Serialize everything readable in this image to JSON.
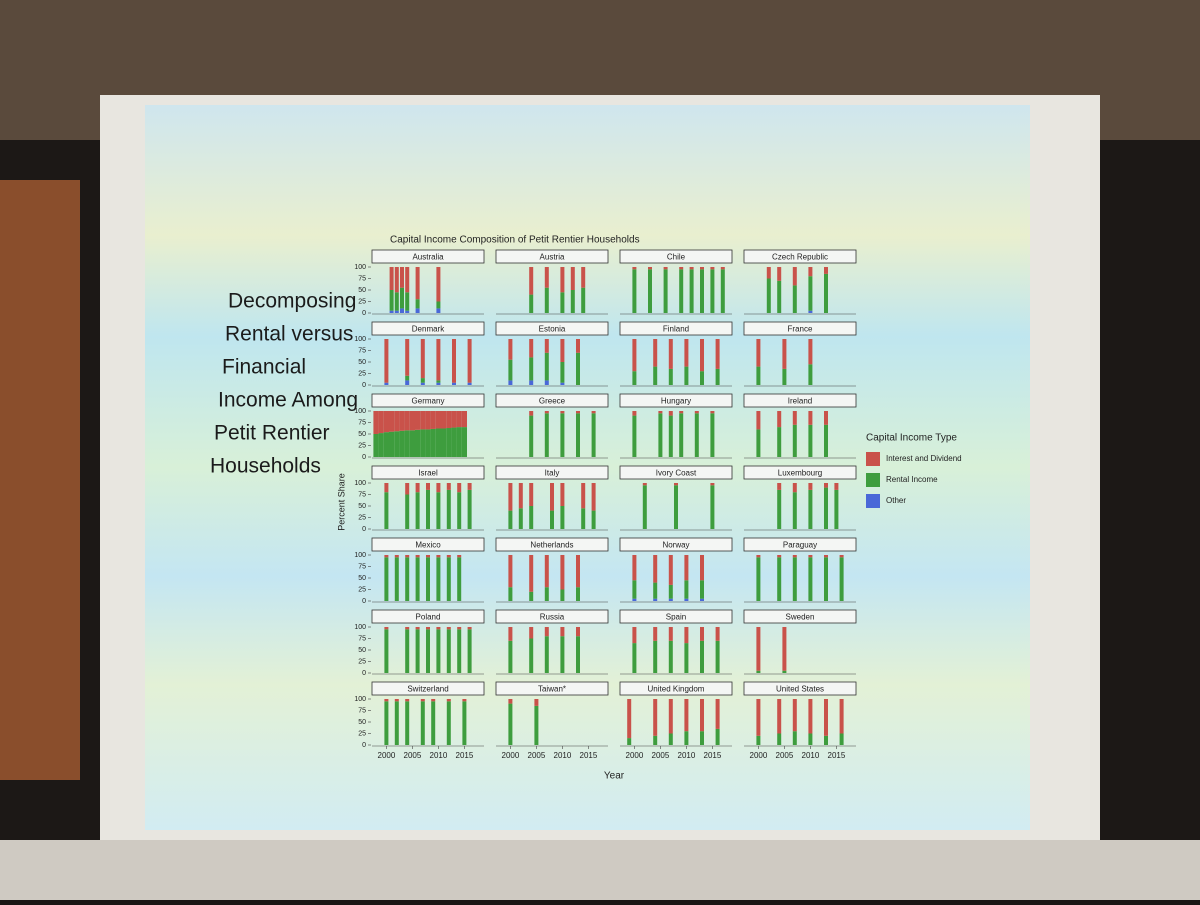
{
  "slide": {
    "heading_lines": [
      "Decomposing",
      "Rental versus",
      "Financial",
      "Income Among",
      "Petit Rentier",
      "Households"
    ]
  },
  "chart_data": {
    "type": "bar",
    "stacked": true,
    "title": "Capital Income Composition of Petit Rentier Households",
    "x_label": "Year",
    "y_label": "Percent Share",
    "legend_title": "Capital Income Type",
    "series": [
      {
        "name": "Interest and Dividend",
        "color": "#c9524a"
      },
      {
        "name": "Rental Income",
        "color": "#3e9d3e"
      },
      {
        "name": "Other",
        "color": "#4a68d8"
      }
    ],
    "ylim": [
      0,
      100
    ],
    "yticks": [
      0,
      25,
      50,
      75,
      100
    ],
    "xlim": [
      1998,
      2018
    ],
    "xticks": [
      2000,
      2005,
      2010,
      2015
    ],
    "panels": [
      {
        "title": "Australia",
        "x": [
          2001,
          2002,
          2003,
          2004,
          2006,
          2010
        ],
        "series": [
          [
            50,
            55,
            45,
            55,
            70,
            75
          ],
          [
            45,
            40,
            45,
            40,
            20,
            15
          ],
          [
            5,
            5,
            10,
            5,
            10,
            10
          ]
        ]
      },
      {
        "title": "Austria",
        "x": [
          2004,
          2007,
          2010,
          2012,
          2014
        ],
        "series": [
          [
            60,
            45,
            55,
            50,
            45
          ],
          [
            40,
            55,
            45,
            50,
            55
          ],
          [
            0,
            0,
            0,
            0,
            0
          ]
        ]
      },
      {
        "title": "Chile",
        "x": [
          2000,
          2003,
          2006,
          2009,
          2011,
          2013,
          2015,
          2017
        ],
        "series": [
          [
            5,
            5,
            5,
            5,
            5,
            5,
            5,
            5
          ],
          [
            95,
            95,
            95,
            95,
            95,
            95,
            95,
            95
          ],
          [
            0,
            0,
            0,
            0,
            0,
            0,
            0,
            0
          ]
        ]
      },
      {
        "title": "Czech Republic",
        "x": [
          2002,
          2004,
          2007,
          2010,
          2013
        ],
        "series": [
          [
            25,
            30,
            40,
            20,
            15
          ],
          [
            75,
            70,
            60,
            75,
            85
          ],
          [
            0,
            0,
            0,
            5,
            0
          ]
        ]
      },
      {
        "title": "Denmark",
        "x": [
          2000,
          2004,
          2007,
          2010,
          2013,
          2016
        ],
        "series": [
          [
            95,
            80,
            85,
            90,
            95,
            95
          ],
          [
            0,
            10,
            10,
            5,
            0,
            0
          ],
          [
            5,
            10,
            5,
            5,
            5,
            5
          ]
        ]
      },
      {
        "title": "Estonia",
        "x": [
          2000,
          2004,
          2007,
          2010,
          2013
        ],
        "series": [
          [
            45,
            40,
            30,
            50,
            30
          ],
          [
            45,
            50,
            60,
            45,
            70
          ],
          [
            10,
            10,
            10,
            5,
            0
          ]
        ]
      },
      {
        "title": "Finland",
        "x": [
          2000,
          2004,
          2007,
          2010,
          2013,
          2016
        ],
        "series": [
          [
            70,
            60,
            65,
            60,
            70,
            65
          ],
          [
            30,
            40,
            35,
            40,
            30,
            35
          ],
          [
            0,
            0,
            0,
            0,
            0,
            0
          ]
        ]
      },
      {
        "title": "France",
        "x": [
          2000,
          2005,
          2010
        ],
        "series": [
          [
            60,
            65,
            55
          ],
          [
            40,
            35,
            45
          ],
          [
            0,
            0,
            0
          ]
        ]
      },
      {
        "title": "Germany",
        "x": [
          1998,
          1999,
          2000,
          2001,
          2002,
          2003,
          2004,
          2005,
          2006,
          2007,
          2008,
          2009,
          2010,
          2011,
          2012,
          2013,
          2014,
          2015
        ],
        "series": [
          [
            50,
            48,
            46,
            45,
            44,
            43,
            42,
            42,
            41,
            40,
            40,
            39,
            38,
            38,
            37,
            36,
            35,
            35
          ],
          [
            50,
            52,
            54,
            55,
            56,
            57,
            58,
            58,
            59,
            60,
            60,
            61,
            62,
            62,
            63,
            64,
            65,
            65
          ],
          [
            0,
            0,
            0,
            0,
            0,
            0,
            0,
            0,
            0,
            0,
            0,
            0,
            0,
            0,
            0,
            0,
            0,
            0
          ]
        ]
      },
      {
        "title": "Greece",
        "x": [
          2004,
          2007,
          2010,
          2013,
          2016
        ],
        "series": [
          [
            10,
            5,
            5,
            5,
            5
          ],
          [
            90,
            95,
            95,
            95,
            95
          ],
          [
            0,
            0,
            0,
            0,
            0
          ]
        ]
      },
      {
        "title": "Hungary",
        "x": [
          2000,
          2005,
          2007,
          2009,
          2012,
          2015
        ],
        "series": [
          [
            10,
            5,
            10,
            5,
            5,
            5
          ],
          [
            90,
            95,
            90,
            95,
            95,
            95
          ],
          [
            0,
            0,
            0,
            0,
            0,
            0
          ]
        ]
      },
      {
        "title": "Ireland",
        "x": [
          2000,
          2004,
          2007,
          2010,
          2013
        ],
        "series": [
          [
            40,
            35,
            30,
            30,
            30
          ],
          [
            60,
            65,
            70,
            70,
            70
          ],
          [
            0,
            0,
            0,
            0,
            0
          ]
        ]
      },
      {
        "title": "Israel",
        "x": [
          2000,
          2004,
          2006,
          2008,
          2010,
          2012,
          2014,
          2016
        ],
        "series": [
          [
            20,
            25,
            20,
            15,
            20,
            15,
            20,
            15
          ],
          [
            80,
            75,
            80,
            85,
            80,
            85,
            80,
            85
          ],
          [
            0,
            0,
            0,
            0,
            0,
            0,
            0,
            0
          ]
        ]
      },
      {
        "title": "Italy",
        "x": [
          2000,
          2002,
          2004,
          2008,
          2010,
          2014,
          2016
        ],
        "series": [
          [
            60,
            55,
            50,
            60,
            50,
            55,
            60
          ],
          [
            40,
            45,
            50,
            40,
            50,
            45,
            40
          ],
          [
            0,
            0,
            0,
            0,
            0,
            0,
            0
          ]
        ]
      },
      {
        "title": "Ivory Coast",
        "x": [
          2002,
          2008,
          2015
        ],
        "series": [
          [
            5,
            5,
            5
          ],
          [
            95,
            95,
            95
          ],
          [
            0,
            0,
            0
          ]
        ]
      },
      {
        "title": "Luxembourg",
        "x": [
          2004,
          2007,
          2010,
          2013,
          2015
        ],
        "series": [
          [
            15,
            20,
            15,
            10,
            15
          ],
          [
            85,
            80,
            85,
            90,
            85
          ],
          [
            0,
            0,
            0,
            0,
            0
          ]
        ]
      },
      {
        "title": "Mexico",
        "x": [
          2000,
          2002,
          2004,
          2006,
          2008,
          2010,
          2012,
          2014
        ],
        "series": [
          [
            5,
            5,
            5,
            5,
            5,
            5,
            5,
            5
          ],
          [
            95,
            95,
            95,
            95,
            95,
            95,
            95,
            95
          ],
          [
            0,
            0,
            0,
            0,
            0,
            0,
            0,
            0
          ]
        ]
      },
      {
        "title": "Netherlands",
        "x": [
          2000,
          2004,
          2007,
          2010,
          2013
        ],
        "series": [
          [
            70,
            80,
            70,
            75,
            70
          ],
          [
            30,
            20,
            30,
            25,
            30
          ],
          [
            0,
            0,
            0,
            0,
            0
          ]
        ]
      },
      {
        "title": "Norway",
        "x": [
          2000,
          2004,
          2007,
          2010,
          2013
        ],
        "series": [
          [
            55,
            60,
            65,
            55,
            55
          ],
          [
            40,
            35,
            30,
            40,
            40
          ],
          [
            5,
            5,
            5,
            5,
            5
          ]
        ]
      },
      {
        "title": "Paraguay",
        "x": [
          2000,
          2004,
          2007,
          2010,
          2013,
          2016
        ],
        "series": [
          [
            5,
            5,
            5,
            5,
            5,
            5
          ],
          [
            95,
            95,
            95,
            95,
            95,
            95
          ],
          [
            0,
            0,
            0,
            0,
            0,
            0
          ]
        ]
      },
      {
        "title": "Poland",
        "x": [
          2000,
          2004,
          2006,
          2008,
          2010,
          2012,
          2014,
          2016
        ],
        "series": [
          [
            5,
            5,
            5,
            5,
            5,
            5,
            5,
            5
          ],
          [
            95,
            95,
            95,
            95,
            95,
            95,
            95,
            95
          ],
          [
            0,
            0,
            0,
            0,
            0,
            0,
            0,
            0
          ]
        ]
      },
      {
        "title": "Russia",
        "x": [
          2000,
          2004,
          2007,
          2010,
          2013
        ],
        "series": [
          [
            30,
            25,
            20,
            20,
            20
          ],
          [
            70,
            75,
            80,
            80,
            80
          ],
          [
            0,
            0,
            0,
            0,
            0
          ]
        ]
      },
      {
        "title": "Spain",
        "x": [
          2000,
          2004,
          2007,
          2010,
          2013,
          2016
        ],
        "series": [
          [
            35,
            30,
            30,
            35,
            30,
            30
          ],
          [
            65,
            70,
            70,
            65,
            70,
            70
          ],
          [
            0,
            0,
            0,
            0,
            0,
            0
          ]
        ]
      },
      {
        "title": "Sweden",
        "x": [
          2000,
          2005
        ],
        "series": [
          [
            95,
            95
          ],
          [
            5,
            5
          ],
          [
            0,
            0
          ]
        ]
      },
      {
        "title": "Switzerland",
        "x": [
          2000,
          2002,
          2004,
          2007,
          2009,
          2012,
          2015
        ],
        "series": [
          [
            5,
            5,
            5,
            5,
            5,
            5,
            5
          ],
          [
            95,
            95,
            95,
            95,
            95,
            95,
            95
          ],
          [
            0,
            0,
            0,
            0,
            0,
            0,
            0
          ]
        ]
      },
      {
        "title": "Taiwan*",
        "x": [
          2000,
          2005
        ],
        "series": [
          [
            10,
            15
          ],
          [
            90,
            85
          ],
          [
            0,
            0
          ]
        ]
      },
      {
        "title": "United Kingdom",
        "x": [
          1999,
          2004,
          2007,
          2010,
          2013,
          2016
        ],
        "series": [
          [
            85,
            80,
            75,
            70,
            70,
            65
          ],
          [
            15,
            20,
            25,
            30,
            30,
            35
          ],
          [
            0,
            0,
            0,
            0,
            0,
            0
          ]
        ]
      },
      {
        "title": "United States",
        "x": [
          2000,
          2004,
          2007,
          2010,
          2013,
          2016
        ],
        "series": [
          [
            80,
            75,
            70,
            75,
            80,
            75
          ],
          [
            20,
            25,
            30,
            25,
            20,
            25
          ],
          [
            0,
            0,
            0,
            0,
            0,
            0
          ]
        ]
      }
    ]
  }
}
